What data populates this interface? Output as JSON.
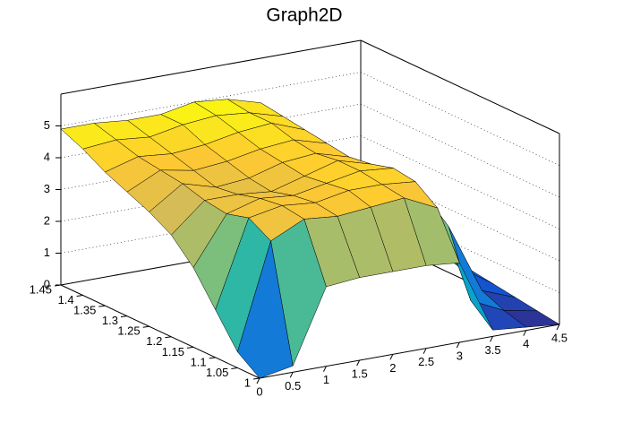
{
  "chart_data": {
    "type": "surface",
    "title": "Graph2D",
    "x": [
      0,
      0.5,
      1,
      1.5,
      2,
      2.5,
      3,
      3.5,
      4,
      4.5
    ],
    "y": [
      1,
      1.05,
      1.1,
      1.15,
      1.2,
      1.25,
      1.3,
      1.35,
      1.4,
      1.45
    ],
    "z": [
      [
        0,
        0.2,
        2.5,
        2.6,
        2.6,
        2.6,
        2.5,
        0.2,
        0.1,
        0
      ],
      [
        0.5,
        3.8,
        4.3,
        4.2,
        4.3,
        4.4,
        3.9,
        0.8,
        0.3,
        0.1
      ],
      [
        1.5,
        4.2,
        4.4,
        4.3,
        4.5,
        4.5,
        4.4,
        2.8,
        0.6,
        0.2
      ],
      [
        2.5,
        4.0,
        4.3,
        4.2,
        4.4,
        4.6,
        4.5,
        2.5,
        1.0,
        0.3
      ],
      [
        3.2,
        4.1,
        4.1,
        4.0,
        4.3,
        4.6,
        4.3,
        2.2,
        1.2,
        0.4
      ],
      [
        3.6,
        4.3,
        4.0,
        4.1,
        4.4,
        4.5,
        4.2,
        1.5,
        1.0,
        0.5
      ],
      [
        3.9,
        4.4,
        4.2,
        4.3,
        4.5,
        4.6,
        4.3,
        1.0,
        0.8,
        0.5
      ],
      [
        4.2,
        4.5,
        4.4,
        4.5,
        4.7,
        4.8,
        4.4,
        0.8,
        0.6,
        0.5
      ],
      [
        4.6,
        4.7,
        4.6,
        4.8,
        4.9,
        4.8,
        4.5,
        0.6,
        0.5,
        0.4
      ],
      [
        4.9,
        4.9,
        4.8,
        4.8,
        5.0,
        4.9,
        4.6,
        0.5,
        0.5,
        0.4
      ]
    ],
    "xlim": [
      0,
      4.5
    ],
    "xticks": [
      0,
      0.5,
      1,
      1.5,
      2,
      2.5,
      3,
      3.5,
      4,
      4.5
    ],
    "ylim": [
      1,
      1.45
    ],
    "yticks": [
      1,
      1.05,
      1.1,
      1.15,
      1.2,
      1.25,
      1.3,
      1.35,
      1.4,
      1.45
    ],
    "zlim": [
      0,
      6
    ],
    "zticks": [
      0,
      1,
      2,
      3,
      4,
      5
    ],
    "grid": true
  }
}
